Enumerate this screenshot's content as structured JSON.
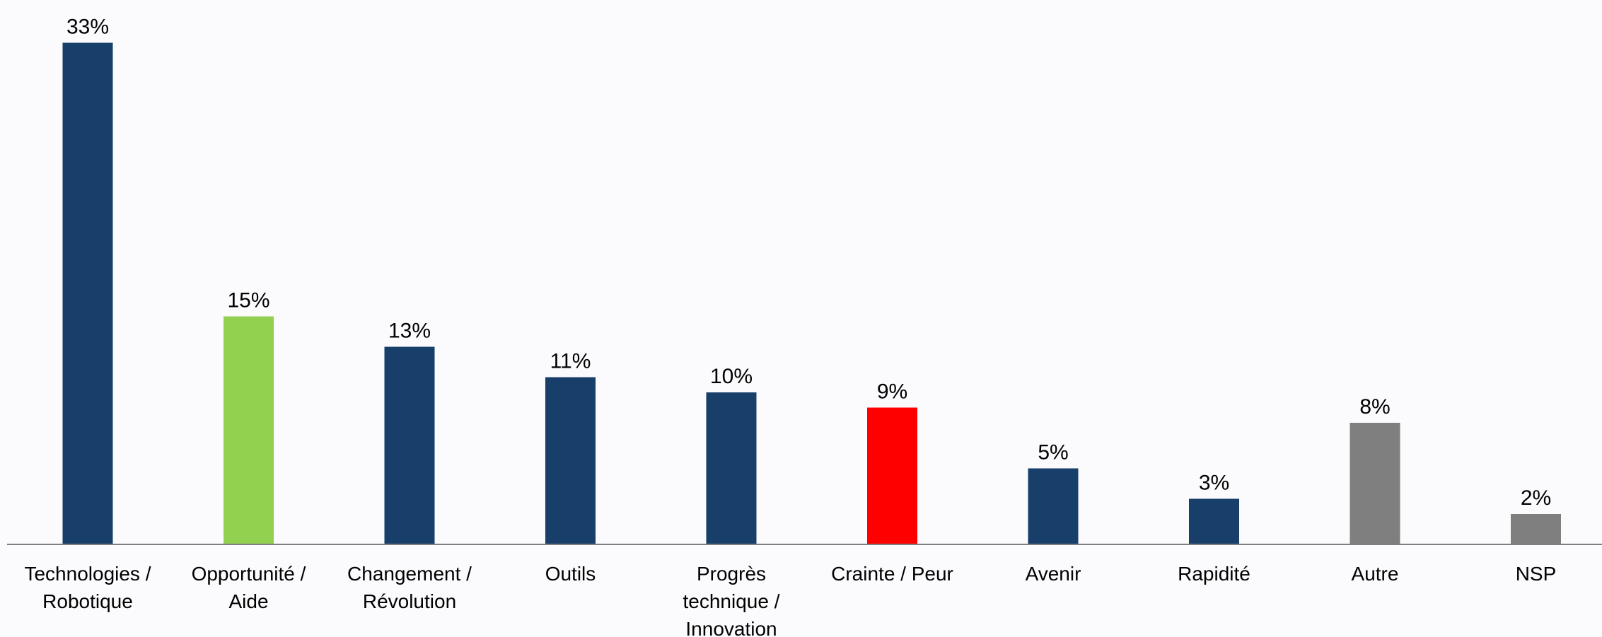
{
  "chart_data": {
    "type": "bar",
    "categories": [
      "Technologies / Robotique",
      "Opportunité / Aide",
      "Changement / Révolution",
      "Outils",
      "Progrès technique / Innovation",
      "Crainte / Peur",
      "Avenir",
      "Rapidité",
      "Autre",
      "NSP"
    ],
    "category_lines": [
      [
        "Technologies /",
        "Robotique"
      ],
      [
        "Opportunité /",
        "Aide"
      ],
      [
        "Changement /",
        "Révolution"
      ],
      [
        "Outils"
      ],
      [
        "Progrès",
        "technique /",
        "Innovation"
      ],
      [
        "Crainte / Peur"
      ],
      [
        "Avenir"
      ],
      [
        "Rapidité"
      ],
      [
        "Autre"
      ],
      [
        "NSP"
      ]
    ],
    "values": [
      33,
      15,
      13,
      11,
      10,
      9,
      5,
      3,
      8,
      2
    ],
    "value_labels": [
      "33%",
      "15%",
      "13%",
      "11%",
      "10%",
      "9%",
      "5%",
      "3%",
      "8%",
      "2%"
    ],
    "colors": [
      "#173f6a",
      "#92d050",
      "#173f6a",
      "#173f6a",
      "#173f6a",
      "#ff0000",
      "#173f6a",
      "#173f6a",
      "#7f7f7f",
      "#7f7f7f"
    ],
    "axis_color": "#7f7f7f",
    "title": "",
    "xlabel": "",
    "ylabel": "",
    "ylim": [
      0,
      33
    ],
    "grid": false,
    "legend": "none"
  }
}
